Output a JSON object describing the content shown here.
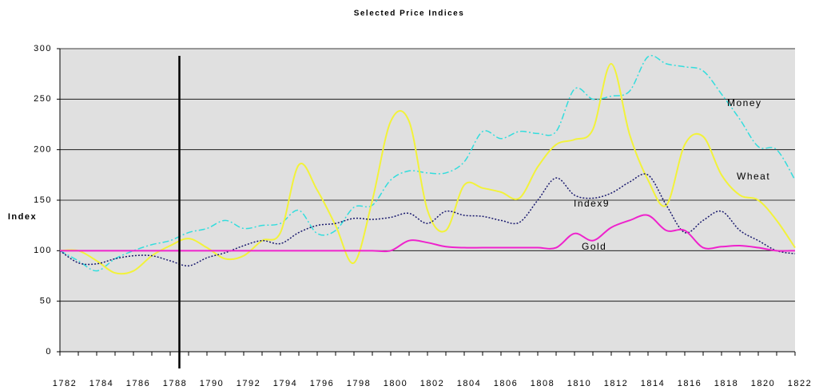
{
  "chart_data": {
    "type": "line",
    "title": "Selected Price Indices",
    "y_label": "Index",
    "x": [
      1782,
      1783,
      1784,
      1785,
      1786,
      1787,
      1788,
      1789,
      1790,
      1791,
      1792,
      1793,
      1794,
      1795,
      1796,
      1797,
      1798,
      1799,
      1800,
      1801,
      1802,
      1803,
      1804,
      1805,
      1806,
      1807,
      1808,
      1809,
      1810,
      1811,
      1812,
      1813,
      1814,
      1815,
      1816,
      1817,
      1818,
      1819,
      1820,
      1821,
      1822
    ],
    "series": [
      {
        "name": "Money",
        "color": "#33dddd",
        "dash": "8 3 2 3",
        "values": [
          100,
          90,
          80,
          92,
          100,
          106,
          110,
          118,
          122,
          130,
          122,
          125,
          127,
          140,
          117,
          120,
          143,
          145,
          170,
          179,
          177,
          177,
          188,
          218,
          211,
          218,
          216,
          218,
          260,
          250,
          253,
          258,
          292,
          285,
          282,
          278,
          255,
          230,
          203,
          200,
          170
        ]
      },
      {
        "name": "Wheat",
        "color": "#f2f23a",
        "dash": "",
        "values": [
          100,
          100,
          90,
          78,
          80,
          95,
          105,
          112,
          103,
          92,
          95,
          110,
          118,
          185,
          160,
          125,
          88,
          150,
          228,
          228,
          140,
          120,
          165,
          162,
          158,
          152,
          183,
          205,
          210,
          220,
          285,
          215,
          170,
          145,
          205,
          213,
          175,
          155,
          150,
          130,
          103
        ]
      },
      {
        "name": "Index9",
        "color": "#1a1a6e",
        "dash": "2 2",
        "values": [
          100,
          88,
          87,
          92,
          95,
          95,
          90,
          85,
          93,
          98,
          105,
          110,
          107,
          118,
          125,
          127,
          132,
          131,
          133,
          137,
          127,
          139,
          135,
          134,
          130,
          128,
          150,
          172,
          155,
          152,
          157,
          168,
          175,
          145,
          118,
          130,
          139,
          120,
          110,
          100,
          97
        ]
      },
      {
        "name": "Gold",
        "color": "#ee22cc",
        "dash": "",
        "values": [
          100,
          100,
          100,
          100,
          100,
          100,
          100,
          100,
          100,
          100,
          100,
          100,
          100,
          100,
          100,
          100,
          100,
          100,
          100,
          110,
          108,
          104,
          103,
          103,
          103,
          103,
          103,
          103,
          117,
          110,
          123,
          130,
          135,
          120,
          120,
          103,
          104,
          105,
          103,
          100,
          100
        ]
      }
    ],
    "xlim": [
      1782,
      1822
    ],
    "xticks": [
      1782,
      1784,
      1786,
      1788,
      1790,
      1792,
      1794,
      1796,
      1798,
      1800,
      1802,
      1804,
      1806,
      1808,
      1810,
      1812,
      1814,
      1816,
      1818,
      1820,
      1822
    ],
    "ylim": [
      0,
      300
    ],
    "yticks": [
      0,
      50,
      100,
      150,
      200,
      250,
      300
    ],
    "grid": true,
    "vline": 1788.5
  }
}
